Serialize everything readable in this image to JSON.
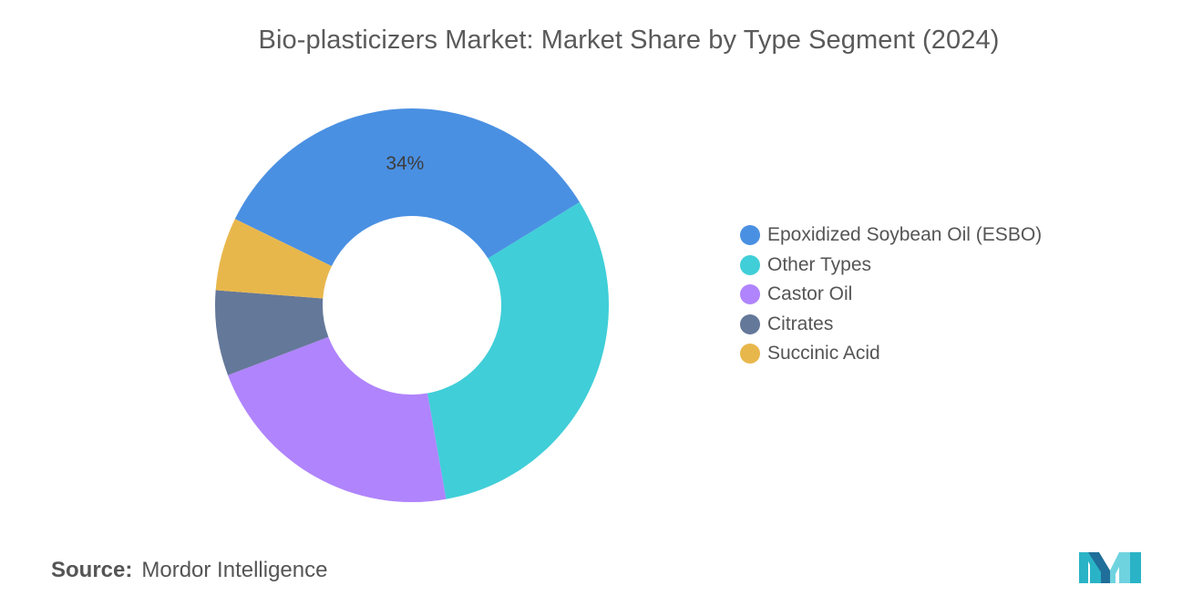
{
  "chart_data": {
    "type": "pie",
    "variant": "donut",
    "title": "Bio-plasticizers Market: Market Share by Type Segment (2024)",
    "categories": [
      "Epoxidized Soybean Oil (ESBO)",
      "Other Types",
      "Castor Oil",
      "Citrates",
      "Succinic Acid"
    ],
    "values": [
      34,
      31,
      22,
      7,
      6
    ],
    "colors": [
      "#4a90e2",
      "#40ced8",
      "#b084fc",
      "#647899",
      "#e8b74c"
    ],
    "data_labels": [
      {
        "category": "Epoxidized Soybean Oil (ESBO)",
        "text": "34%"
      }
    ],
    "legend_position": "right",
    "grid": false
  },
  "source": {
    "label": "Source:",
    "text": "Mordor Intelligence"
  },
  "logo": {
    "icon": "mordor-intelligence-logo-icon",
    "colors": [
      "#2ab3c6",
      "#6fd3df",
      "#1f6f9a"
    ]
  }
}
